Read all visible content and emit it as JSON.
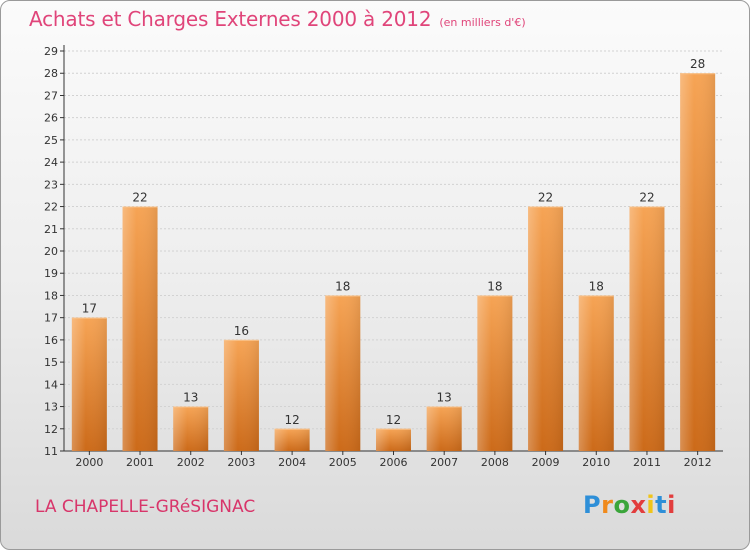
{
  "title": "Achats et Charges Externes 2000 à 2012",
  "title_unit": "(en milliers d'€)",
  "commune": "LA CHAPELLE-GRéSIGNAC",
  "logo": {
    "text": "Proxiti",
    "letter_colors": [
      "#2e8fd8",
      "#f08a1c",
      "#3aa53a",
      "#e23d3d",
      "#f0c419",
      "#2e8fd8",
      "#e23d3d"
    ]
  },
  "colors": {
    "bar_top": "#f6a455",
    "bar_bottom": "#cc6a19",
    "title": "#e0457a",
    "axis": "#333333",
    "grid": "#d2d2d2"
  },
  "chart_data": {
    "type": "bar",
    "categories": [
      "2000",
      "2001",
      "2002",
      "2003",
      "2004",
      "2005",
      "2006",
      "2007",
      "2008",
      "2009",
      "2010",
      "2011",
      "2012"
    ],
    "values": [
      17,
      22,
      13,
      16,
      12,
      18,
      12,
      13,
      18,
      22,
      18,
      22,
      28
    ],
    "ylim": [
      11,
      29
    ],
    "yticks": [
      11,
      12,
      13,
      14,
      15,
      16,
      17,
      18,
      19,
      20,
      21,
      22,
      23,
      24,
      25,
      26,
      27,
      28,
      29
    ],
    "grid": true,
    "data_labels": true
  }
}
